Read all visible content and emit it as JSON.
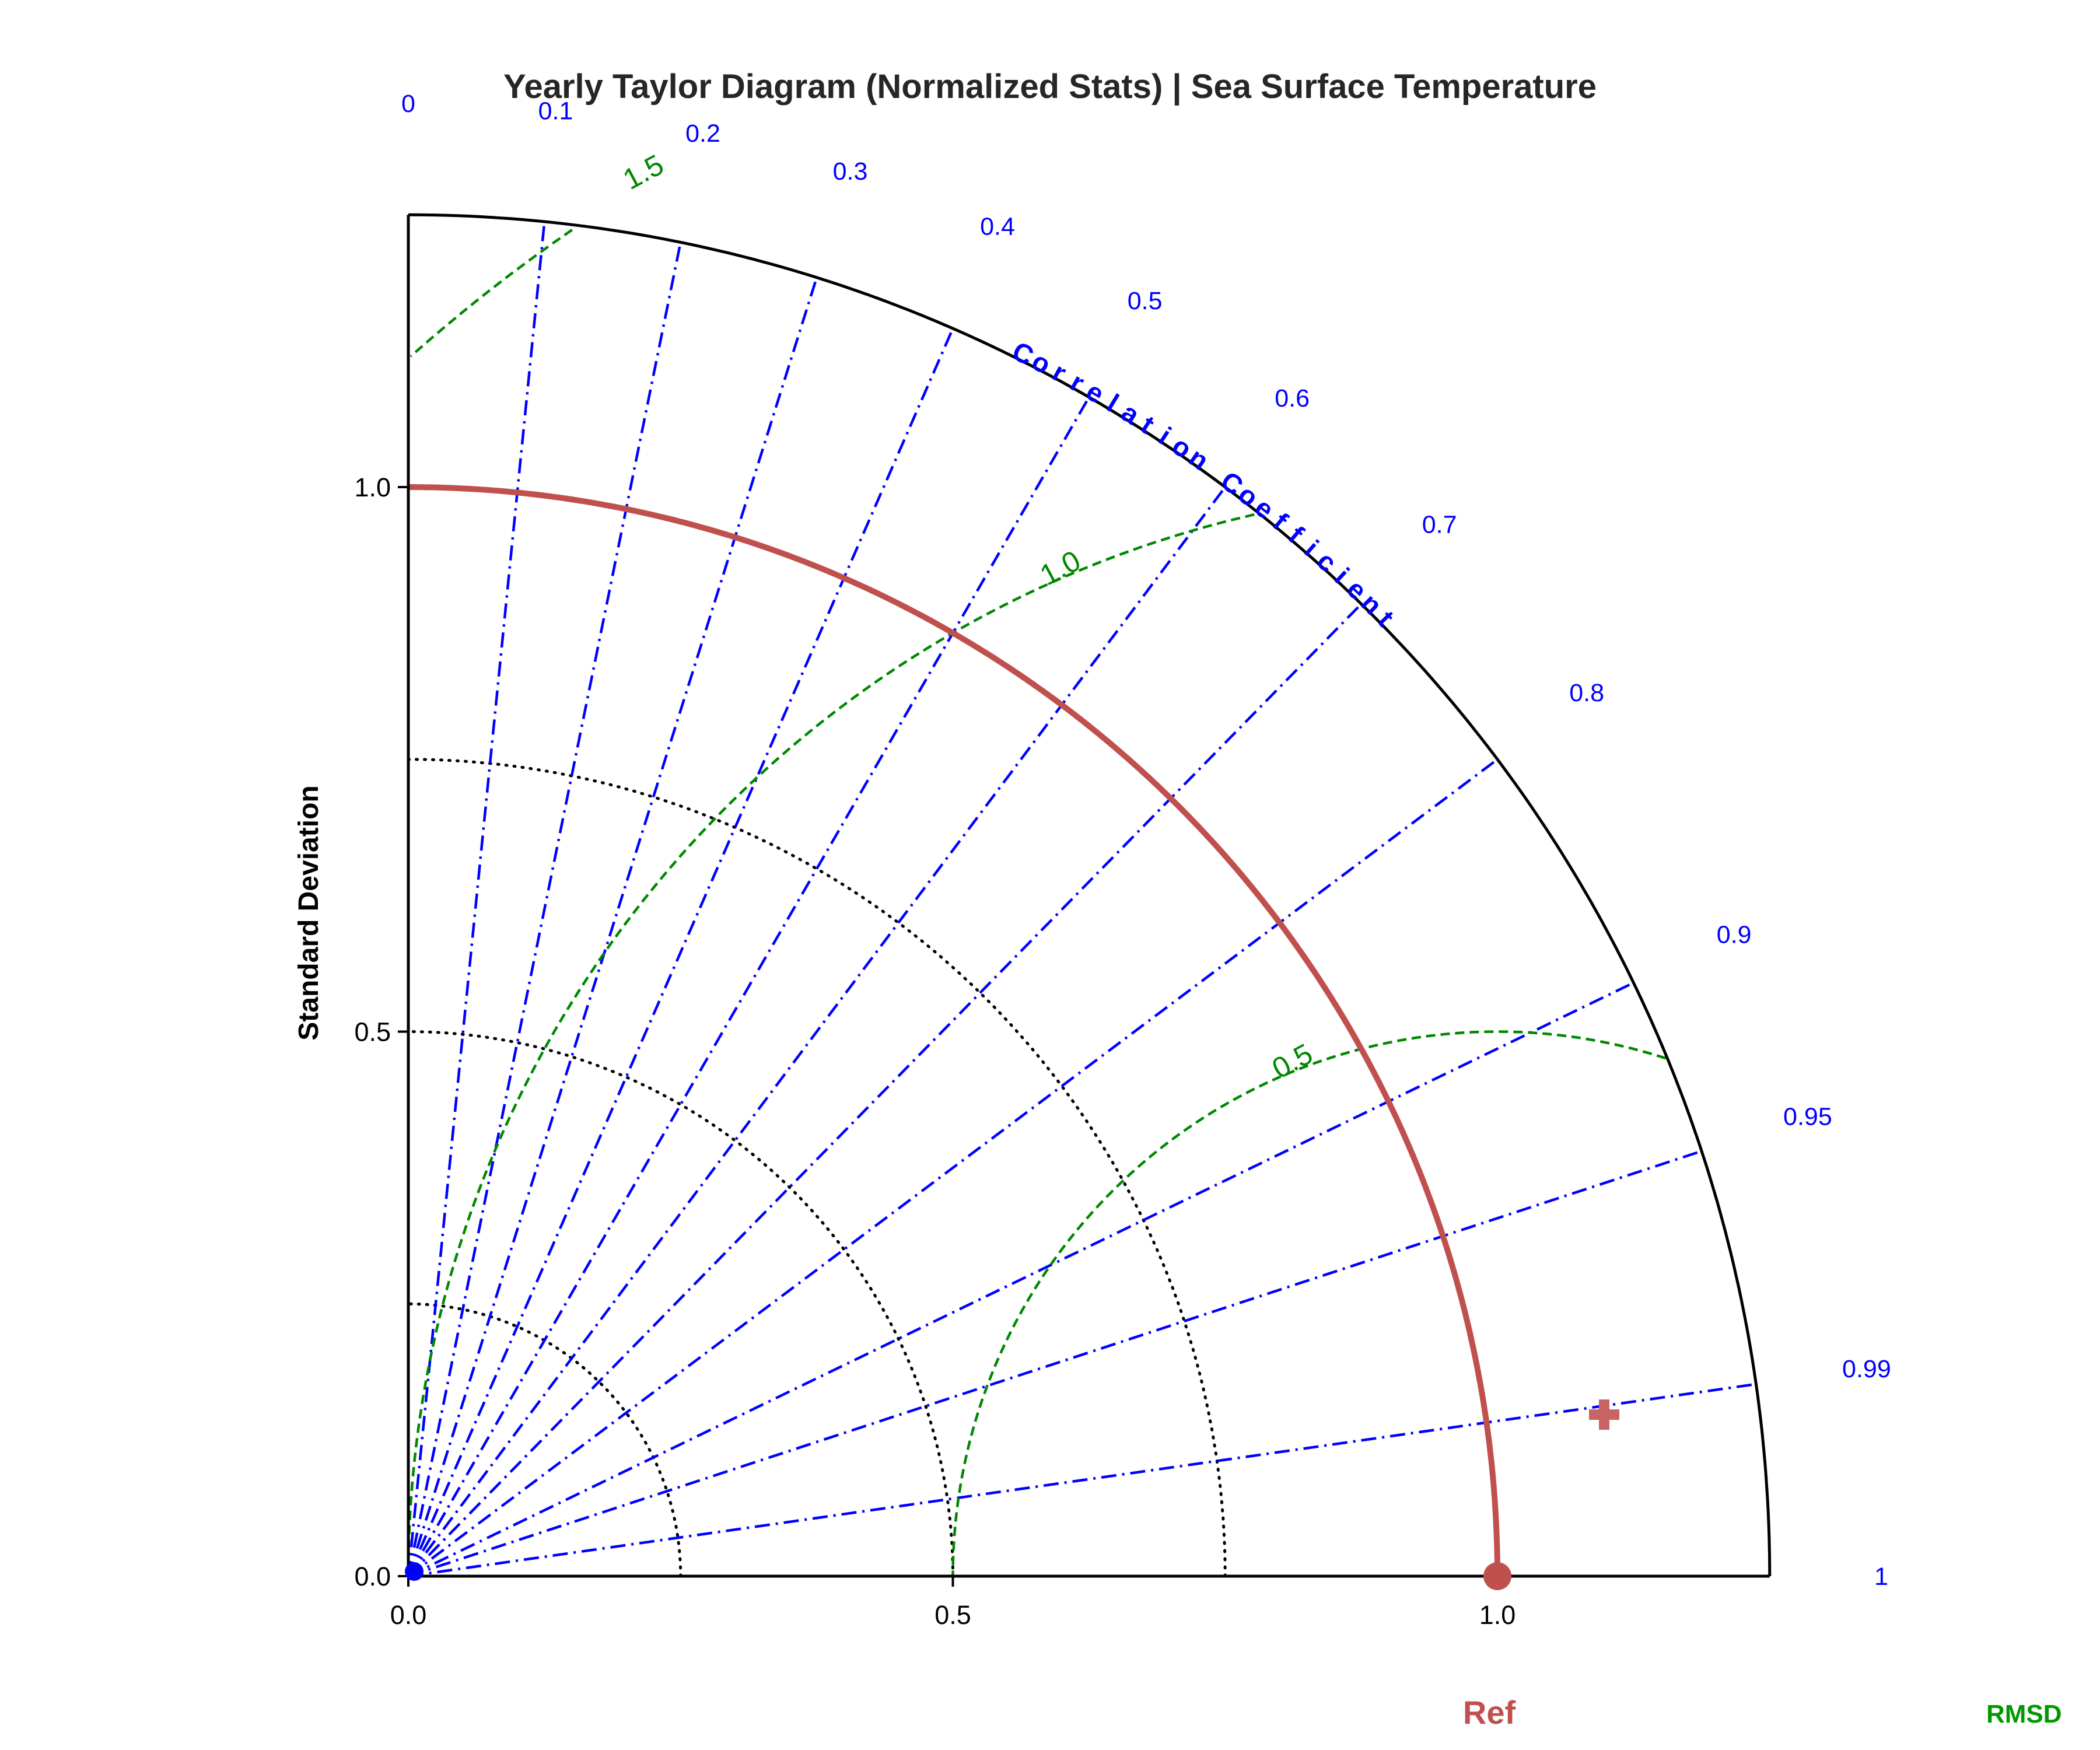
{
  "chart_data": {
    "type": "taylor",
    "title": "Yearly Taylor Diagram (Normalized Stats) | Sea Surface Temperature",
    "ylabel": "Standard Deviation",
    "xticks": [
      "0.0",
      "0.5",
      "1.0"
    ],
    "yticks": [
      "0.0",
      "0.5",
      "1.0"
    ],
    "std_max": 1.25,
    "std_ticks": [
      0,
      0.5,
      1.0
    ],
    "std_dotted_circles": [
      0.25,
      0.5,
      0.75
    ],
    "correlation_label": "Correlation Coefficient",
    "correlation_ticks": [
      0,
      0.1,
      0.2,
      0.3,
      0.4,
      0.5,
      0.6,
      0.7,
      0.8,
      0.9,
      0.95,
      0.99,
      1
    ],
    "correlation_tick_labels": [
      "0",
      "0.1",
      "0.2",
      "0.3",
      "0.4",
      "0.5",
      "0.6",
      "0.7",
      "0.8",
      "0.9",
      "0.95",
      "0.99",
      "1"
    ],
    "rmsd_contours": [
      0.5,
      1.0,
      1.5
    ],
    "rmsd_contour_labels": [
      "0.5",
      "1.0",
      "1.5"
    ],
    "reference": {
      "label": "Ref",
      "std": 1.0,
      "corr": 1.0
    },
    "points": [
      {
        "marker": "plus",
        "std": 1.108,
        "corr": 0.991
      }
    ],
    "legend": [
      "Ref",
      "RMSD"
    ],
    "colors": {
      "reference": "#c0504d",
      "correlation": "#0000ff",
      "rmsd": "#008800",
      "point": "#c86464",
      "std_grid": "#000000"
    }
  }
}
